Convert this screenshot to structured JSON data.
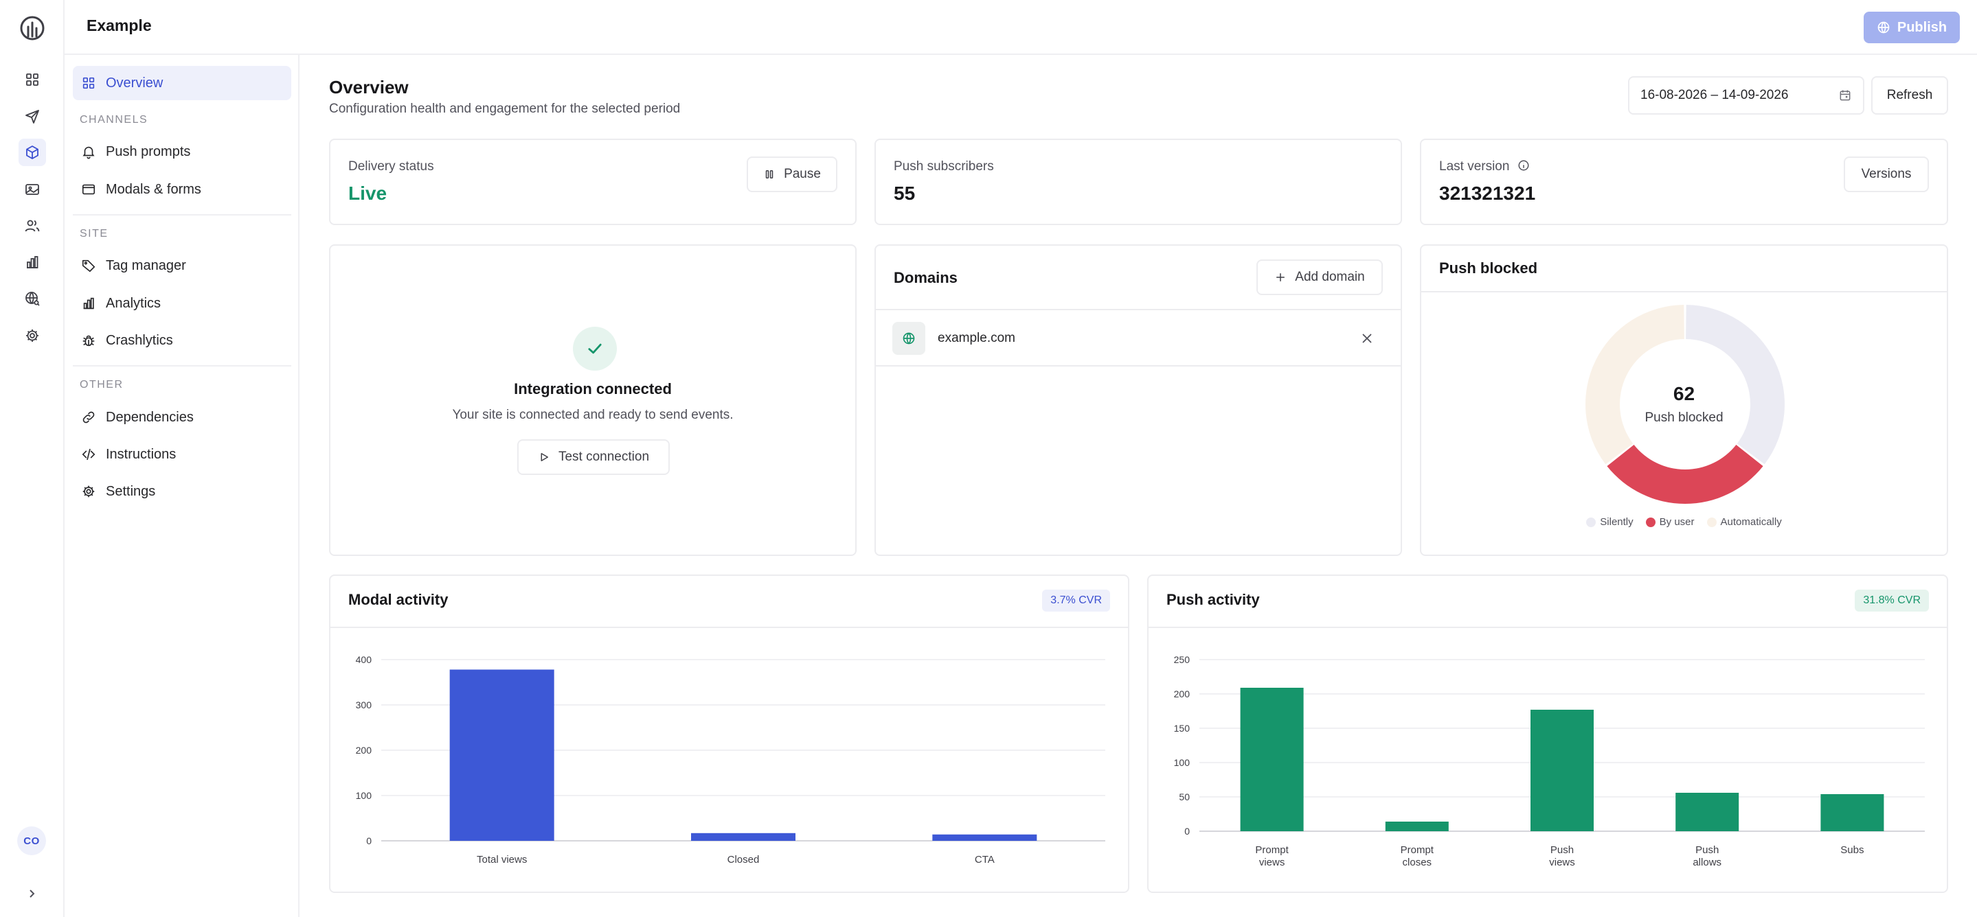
{
  "app": {
    "title": "Example",
    "publish_label": "Publish",
    "avatar_initials": "CO"
  },
  "rail": {
    "icons": [
      "logo-icon",
      "grid-icon",
      "send-icon",
      "box-icon",
      "image-icon",
      "users-icon",
      "bar-chart-icon",
      "globe-search-icon",
      "gear-icon"
    ]
  },
  "sidebar": {
    "overview": "Overview",
    "sections": {
      "channels": "CHANNELS",
      "site": "SITE",
      "other": "OTHER"
    },
    "items": {
      "push_prompts": "Push prompts",
      "modals_forms": "Modals & forms",
      "tag_manager": "Tag manager",
      "analytics": "Analytics",
      "crashlytics": "Crashlytics",
      "dependencies": "Dependencies",
      "instructions": "Instructions",
      "settings": "Settings"
    }
  },
  "page": {
    "title": "Overview",
    "subtitle": "Configuration health and engagement for the selected period",
    "date_range": "16-08-2026 – 14-09-2026",
    "refresh_label": "Refresh"
  },
  "cards": {
    "delivery": {
      "label": "Delivery status",
      "value": "Live",
      "button": "Pause"
    },
    "subscribers": {
      "label": "Push subscribers",
      "value": "55"
    },
    "version": {
      "label": "Last version",
      "value": "321321321",
      "button": "Versions"
    },
    "integration": {
      "title": "Integration connected",
      "subtitle": "Your site is connected and ready to send events.",
      "button": "Test connection"
    },
    "domains": {
      "title": "Domains",
      "add_button": "Add domain",
      "items": [
        "example.com"
      ]
    },
    "push_blocked": {
      "title": "Push blocked",
      "total": "62",
      "center_label": "Push blocked"
    }
  },
  "colors": {
    "accent": "#3b4fd1",
    "green": "#16956b",
    "red": "#dc4657",
    "light_gray": "#ebebf3",
    "cream": "#f9f1e7"
  },
  "chart_data": [
    {
      "type": "pie",
      "title": "Push blocked",
      "categories": [
        "Silently",
        "By user",
        "Automatically"
      ],
      "values": [
        22,
        18,
        22
      ],
      "colors": [
        "#ebebf3",
        "#dc4657",
        "#f9f1e7"
      ],
      "legend": "bottom"
    },
    {
      "type": "bar",
      "title": "Modal activity",
      "badge": "3.7% CVR",
      "categories": [
        "Total views",
        "Closed",
        "CTA"
      ],
      "values": [
        378,
        17,
        14
      ],
      "ylim": [
        0,
        400
      ],
      "yticks": [
        0,
        100,
        200,
        300,
        400
      ],
      "color": "#3d58d6",
      "grid": true
    },
    {
      "type": "bar",
      "title": "Push activity",
      "badge": "31.8% CVR",
      "categories": [
        [
          "Prompt",
          "views"
        ],
        [
          "Prompt",
          "closes"
        ],
        [
          "Push",
          "views"
        ],
        [
          "Push",
          "allows"
        ],
        [
          "Subs"
        ]
      ],
      "values": [
        209,
        14,
        177,
        56,
        54
      ],
      "ylim": [
        0,
        250
      ],
      "yticks": [
        0,
        50,
        100,
        150,
        200,
        250
      ],
      "color": "#16956b",
      "grid": true
    }
  ]
}
